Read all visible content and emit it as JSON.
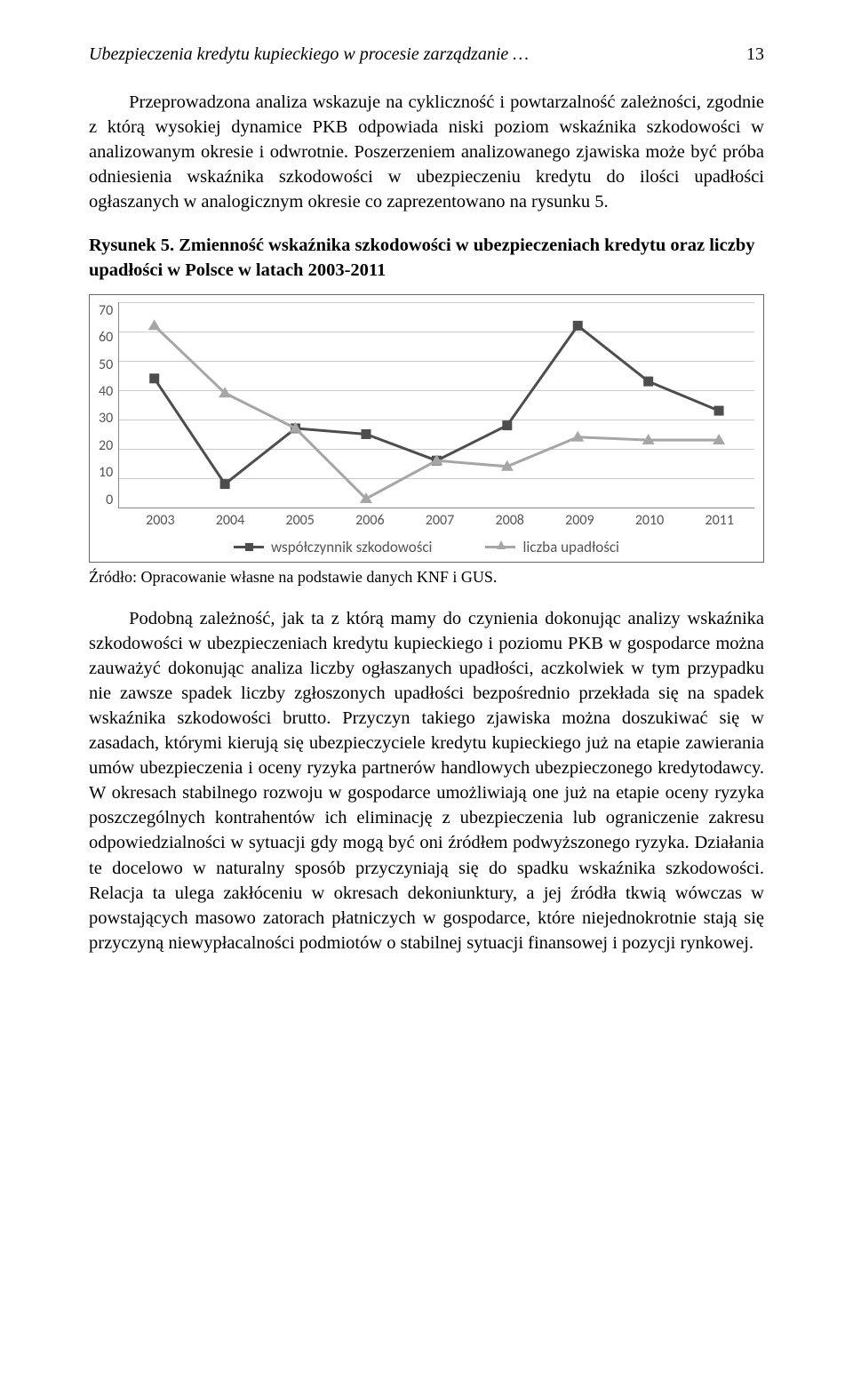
{
  "header": {
    "running_title": "Ubezpieczenia kredytu kupieckiego w procesie zarządzanie …",
    "page_number": "13"
  },
  "paragraph1": "Przeprowadzona analiza wskazuje na cykliczność i powtarzalność zależności, zgodnie z którą wysokiej dynamice PKB odpowiada niski poziom wskaźnika szkodowości w analizowanym okresie i odwrotnie. Poszerzeniem analizowanego zjawiska może być próba odniesienia wskaźnika szkodowości w ubezpieczeniu kredytu do ilości upadłości ogłaszanych w analogicznym okresie co zaprezentowano na rysunku 5.",
  "figure": {
    "caption_prefix": "Rysunek 5. ",
    "caption_text": "Zmienność wskaźnika szkodowości w ubezpieczeniach kredytu oraz liczby upadłości w Polsce w latach 2003-2011",
    "chart": {
      "type": "line",
      "y_ticks": [
        "70",
        "60",
        "50",
        "40",
        "30",
        "20",
        "10",
        "0"
      ],
      "y_min": 0,
      "y_max": 70,
      "x_labels": [
        "2003",
        "2004",
        "2005",
        "2006",
        "2007",
        "2008",
        "2009",
        "2010",
        "2011"
      ],
      "grid_color": "#cccccc",
      "axis_color": "#888888",
      "background_color": "#ffffff",
      "series": [
        {
          "name": "współczynnik szkodowości",
          "marker": "square",
          "color": "#4d4d4d",
          "line_width": 3,
          "values": [
            44,
            8,
            27,
            25,
            16,
            28,
            62,
            43,
            33
          ]
        },
        {
          "name": "liczba upadłości",
          "marker": "triangle",
          "color": "#a6a6a6",
          "line_width": 3,
          "values": [
            62,
            39,
            27,
            3,
            16,
            14,
            24,
            23,
            23
          ]
        }
      ],
      "legend": {
        "item1": "współczynnik szkodowości",
        "item2": "liczba upadłości"
      }
    },
    "source": "Źródło: Opracowanie własne na podstawie danych KNF i GUS."
  },
  "paragraph2": "Podobną zależność, jak ta z którą mamy do czynienia dokonując analizy wskaźnika szkodowości w ubezpieczeniach kredytu kupieckiego i poziomu PKB w gospodarce można zauważyć dokonując analiza liczby ogłaszanych upadłości, aczkolwiek w tym przypadku nie zawsze spadek liczby zgłoszonych upadłości bezpośrednio przekłada się na spadek wskaźnika szkodowości brutto. Przyczyn takiego zjawiska można doszukiwać się w zasadach, którymi kierują się ubezpieczyciele kredytu kupieckiego już na etapie zawierania umów ubezpieczenia i oceny ryzyka partnerów handlowych ubezpieczonego kredytodawcy. W okresach stabilnego rozwoju w gospodarce umożliwiają one już na etapie oceny ryzyka poszczególnych kontrahentów ich eliminację z ubezpieczenia lub ograniczenie zakresu odpowiedzialności w sytuacji gdy mogą być oni źródłem podwyższonego ryzyka. Działania te docelowo w naturalny sposób przyczyniają się do spadku wskaźnika szkodowości. Relacja ta ulega zakłóceniu w okresach dekoniunktury, a jej źródła tkwią wówczas w powstających masowo zatorach płatniczych w gospodarce, które niejednokrotnie stają się przyczyną niewypłacalności podmiotów o stabilnej sytuacji finansowej i pozycji rynkowej."
}
